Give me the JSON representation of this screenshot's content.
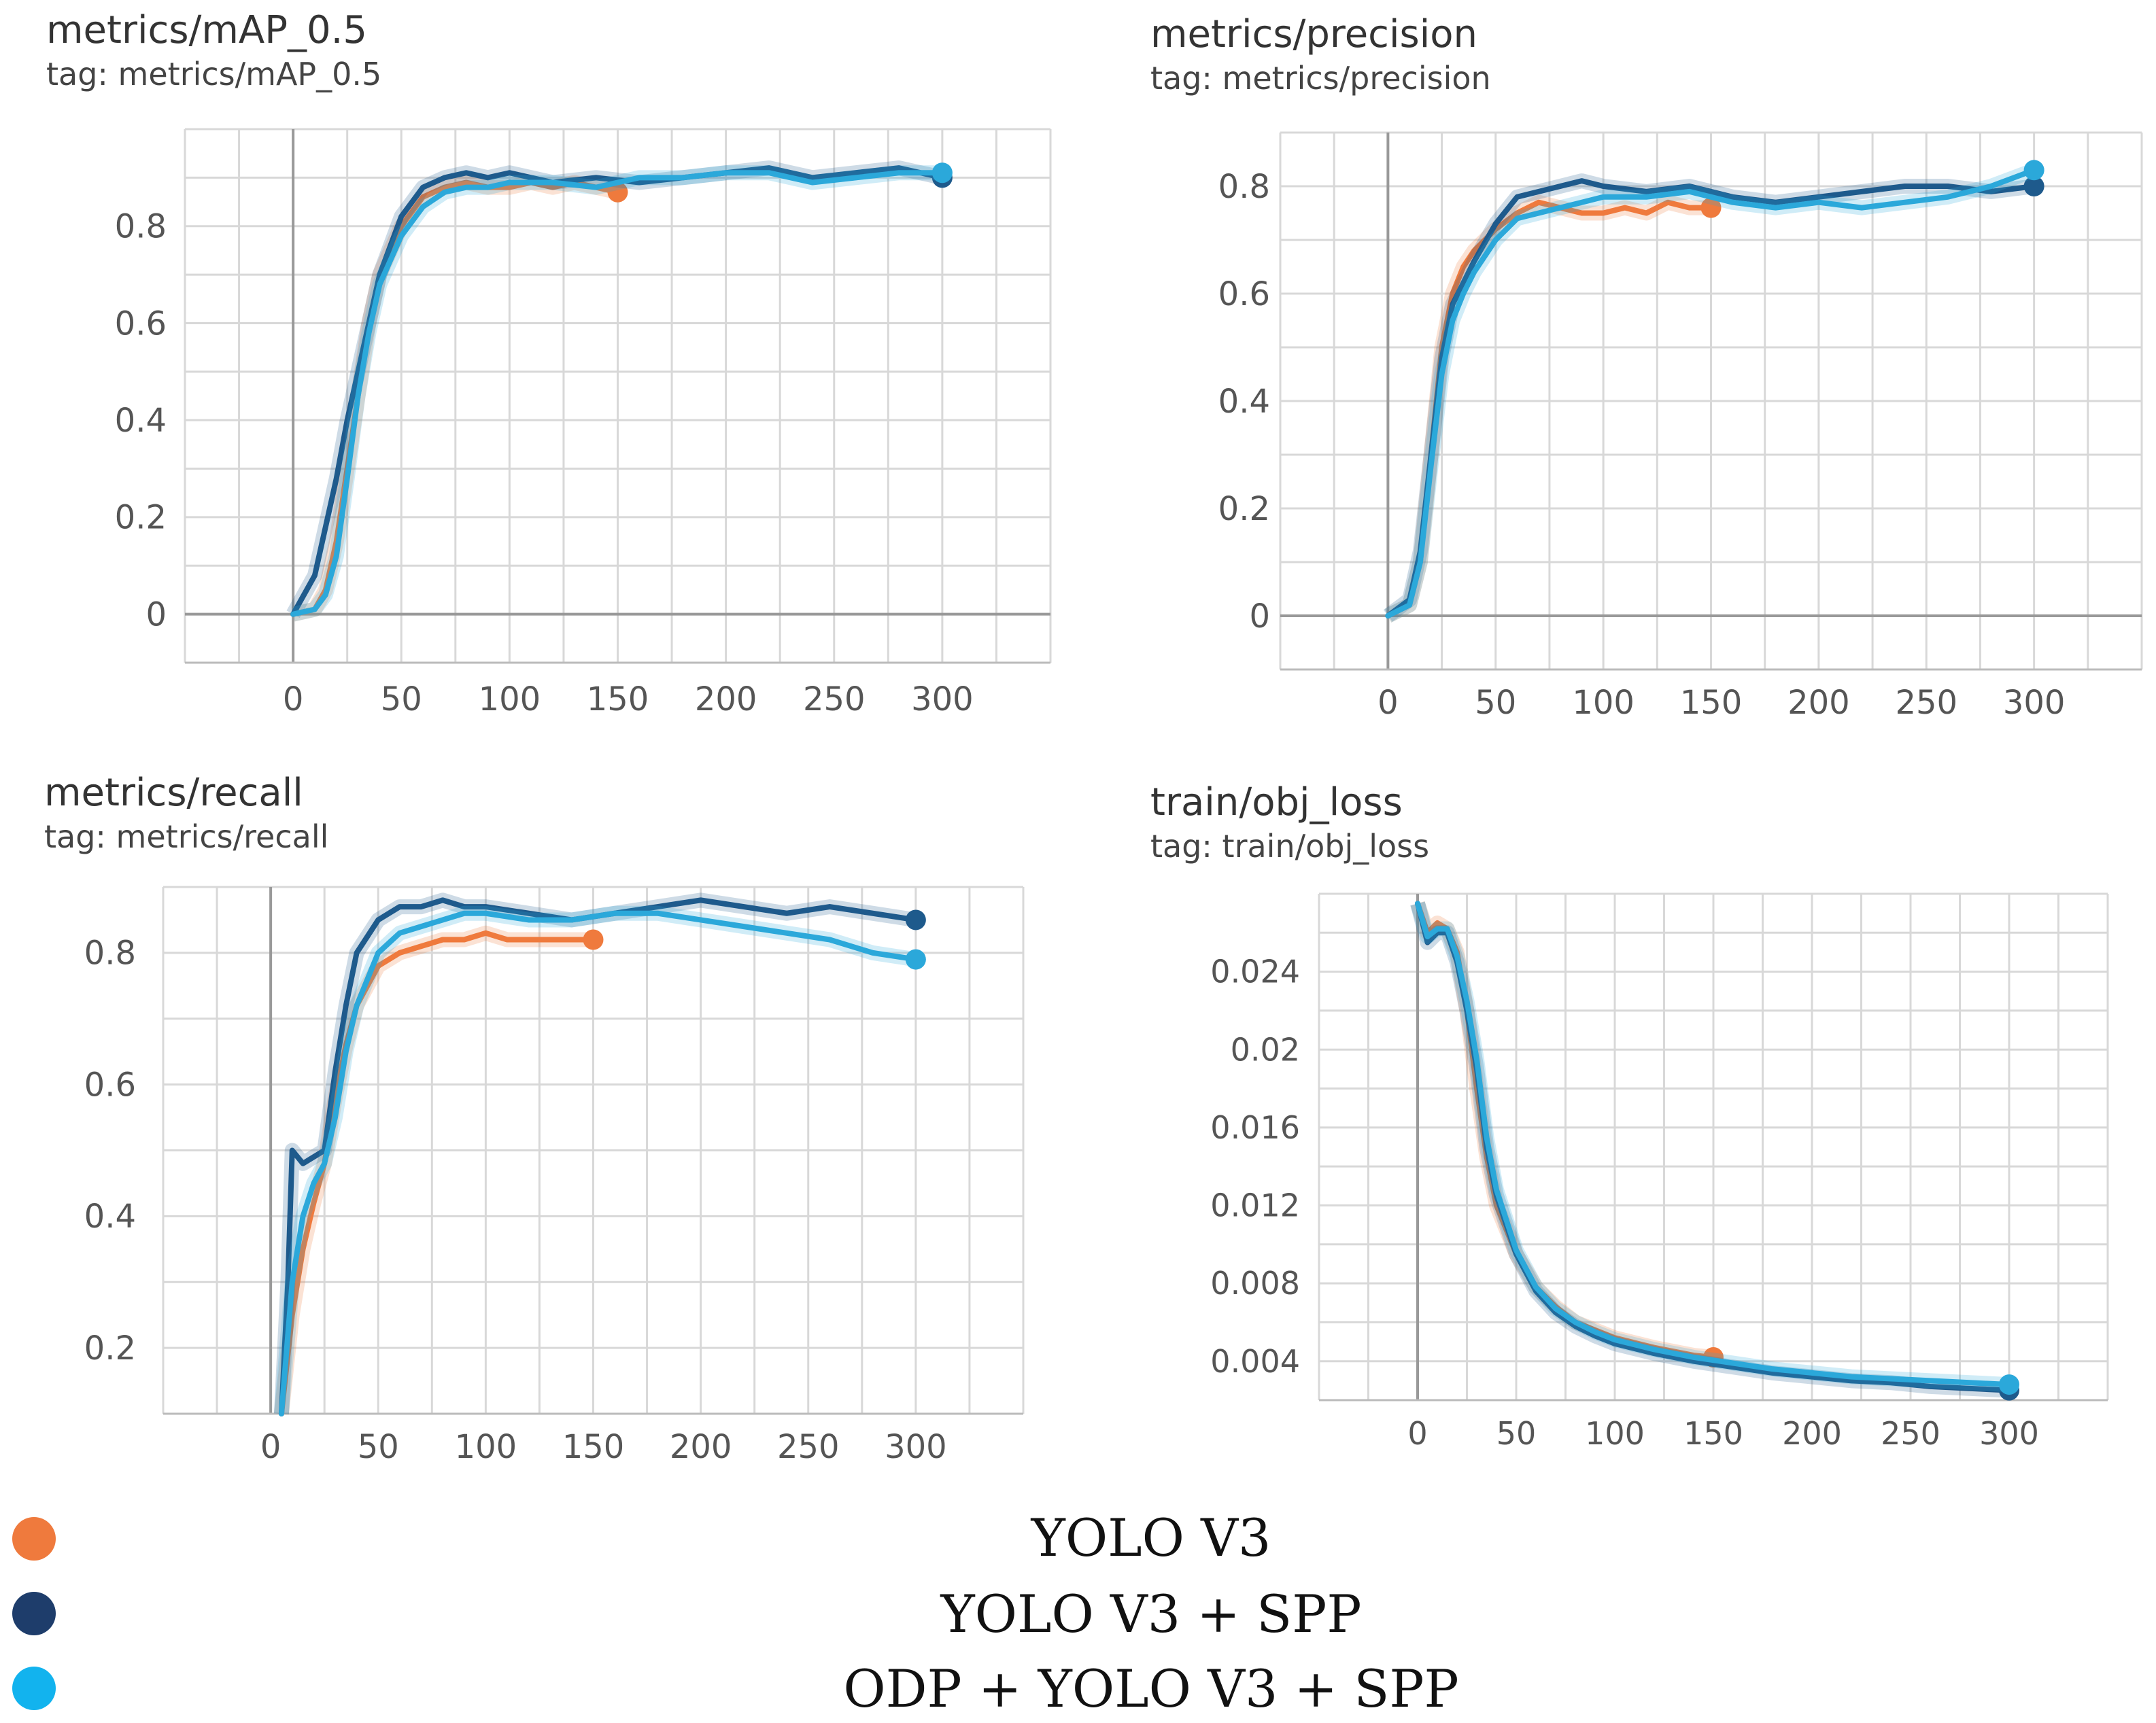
{
  "colors": {
    "yolo": "#EF7A3D",
    "yolo_spp": "#1E5A8C",
    "odp": "#2BA8DA",
    "grid": "#D8D8D8",
    "axis": "#999999"
  },
  "legend": [
    {
      "label": "YOLO V3",
      "color": "#EF7A3D"
    },
    {
      "label": "YOLO V3 + SPP",
      "color": "#1E3D6B"
    },
    {
      "label": "ODP + YOLO V3 + SPP",
      "color": "#12B3EE"
    }
  ],
  "chart_data": [
    {
      "id": "map",
      "type": "line",
      "title": "metrics/mAP_0.5",
      "subtitle": "tag: metrics/mAP_0.5",
      "x_ticks": [
        0,
        50,
        100,
        150,
        200,
        250,
        300
      ],
      "y_ticks": [
        0,
        0.2,
        0.4,
        0.6,
        0.8
      ],
      "y_tick_labels": [
        "0",
        "0.2",
        "0.4",
        "0.6",
        "0.8"
      ],
      "xlim": [
        -50,
        350
      ],
      "ylim": [
        -0.1,
        1.0
      ],
      "grid": true,
      "series": [
        {
          "key": "yolo",
          "x": [
            0,
            10,
            15,
            20,
            25,
            30,
            35,
            40,
            50,
            60,
            70,
            80,
            90,
            100,
            110,
            120,
            130,
            140,
            150
          ],
          "y": [
            0,
            0.01,
            0.05,
            0.15,
            0.3,
            0.45,
            0.6,
            0.7,
            0.8,
            0.86,
            0.88,
            0.89,
            0.88,
            0.88,
            0.89,
            0.88,
            0.89,
            0.88,
            0.87
          ]
        },
        {
          "key": "yolo_spp",
          "x": [
            0,
            10,
            15,
            20,
            25,
            30,
            35,
            40,
            50,
            60,
            70,
            80,
            90,
            100,
            120,
            140,
            160,
            180,
            200,
            220,
            240,
            260,
            280,
            300
          ],
          "y": [
            0,
            0.08,
            0.18,
            0.28,
            0.4,
            0.5,
            0.6,
            0.7,
            0.82,
            0.88,
            0.9,
            0.91,
            0.9,
            0.91,
            0.89,
            0.9,
            0.89,
            0.9,
            0.91,
            0.92,
            0.9,
            0.91,
            0.92,
            0.9
          ]
        },
        {
          "key": "odp",
          "x": [
            0,
            10,
            15,
            20,
            25,
            30,
            35,
            40,
            50,
            60,
            70,
            80,
            90,
            100,
            120,
            140,
            160,
            180,
            200,
            220,
            240,
            260,
            280,
            300
          ],
          "y": [
            0,
            0.01,
            0.04,
            0.12,
            0.28,
            0.45,
            0.58,
            0.68,
            0.78,
            0.84,
            0.87,
            0.88,
            0.88,
            0.89,
            0.89,
            0.88,
            0.9,
            0.9,
            0.91,
            0.91,
            0.89,
            0.9,
            0.91,
            0.91
          ]
        }
      ]
    },
    {
      "id": "precision",
      "type": "line",
      "title": "metrics/precision",
      "subtitle": "tag: metrics/precision",
      "x_ticks": [
        0,
        50,
        100,
        150,
        200,
        250,
        300
      ],
      "y_ticks": [
        0,
        0.2,
        0.4,
        0.6,
        0.8
      ],
      "y_tick_labels": [
        "0",
        "0.2",
        "0.4",
        "0.6",
        "0.8"
      ],
      "xlim": [
        -50,
        350
      ],
      "ylim": [
        -0.1,
        0.9
      ],
      "grid": true,
      "series": [
        {
          "key": "yolo",
          "x": [
            0,
            10,
            15,
            20,
            25,
            30,
            35,
            40,
            50,
            60,
            70,
            80,
            90,
            100,
            110,
            120,
            130,
            140,
            150
          ],
          "y": [
            0,
            0.02,
            0.1,
            0.3,
            0.5,
            0.6,
            0.65,
            0.68,
            0.72,
            0.75,
            0.77,
            0.76,
            0.75,
            0.75,
            0.76,
            0.75,
            0.77,
            0.76,
            0.76
          ]
        },
        {
          "key": "yolo_spp",
          "x": [
            0,
            10,
            15,
            20,
            25,
            30,
            35,
            40,
            50,
            60,
            70,
            80,
            90,
            100,
            120,
            140,
            160,
            180,
            200,
            220,
            240,
            260,
            280,
            300
          ],
          "y": [
            0,
            0.03,
            0.12,
            0.3,
            0.48,
            0.58,
            0.62,
            0.66,
            0.73,
            0.78,
            0.79,
            0.8,
            0.81,
            0.8,
            0.79,
            0.8,
            0.78,
            0.77,
            0.78,
            0.79,
            0.8,
            0.8,
            0.79,
            0.8
          ]
        },
        {
          "key": "odp",
          "x": [
            0,
            10,
            15,
            20,
            25,
            30,
            35,
            40,
            50,
            60,
            70,
            80,
            90,
            100,
            120,
            140,
            160,
            180,
            200,
            220,
            240,
            260,
            280,
            300
          ],
          "y": [
            0,
            0.02,
            0.1,
            0.28,
            0.45,
            0.55,
            0.6,
            0.64,
            0.7,
            0.74,
            0.75,
            0.76,
            0.77,
            0.78,
            0.78,
            0.79,
            0.77,
            0.76,
            0.77,
            0.76,
            0.77,
            0.78,
            0.8,
            0.83
          ]
        }
      ]
    },
    {
      "id": "recall",
      "type": "line",
      "title": "metrics/recall",
      "subtitle": "tag: metrics/recall",
      "x_ticks": [
        0,
        50,
        100,
        150,
        200,
        250,
        300
      ],
      "y_ticks": [
        0.2,
        0.4,
        0.6,
        0.8
      ],
      "y_tick_labels": [
        "0.2",
        "0.4",
        "0.6",
        "0.8"
      ],
      "xlim": [
        -50,
        350
      ],
      "ylim": [
        0.1,
        0.9
      ],
      "grid": true,
      "series": [
        {
          "key": "yolo",
          "x": [
            5,
            10,
            15,
            20,
            25,
            30,
            35,
            40,
            50,
            60,
            70,
            80,
            90,
            100,
            110,
            120,
            130,
            140,
            150
          ],
          "y": [
            0.1,
            0.25,
            0.35,
            0.42,
            0.48,
            0.58,
            0.66,
            0.72,
            0.78,
            0.8,
            0.81,
            0.82,
            0.82,
            0.83,
            0.82,
            0.82,
            0.82,
            0.82,
            0.82
          ]
        },
        {
          "key": "yolo_spp",
          "x": [
            5,
            8,
            10,
            15,
            20,
            25,
            30,
            35,
            40,
            50,
            60,
            70,
            80,
            90,
            100,
            120,
            140,
            160,
            180,
            200,
            220,
            240,
            260,
            280,
            300
          ],
          "y": [
            0.1,
            0.3,
            0.5,
            0.48,
            0.49,
            0.5,
            0.62,
            0.72,
            0.8,
            0.85,
            0.87,
            0.87,
            0.88,
            0.87,
            0.87,
            0.86,
            0.85,
            0.86,
            0.87,
            0.88,
            0.87,
            0.86,
            0.87,
            0.86,
            0.85
          ]
        },
        {
          "key": "odp",
          "x": [
            5,
            10,
            15,
            20,
            25,
            30,
            35,
            40,
            50,
            60,
            70,
            80,
            90,
            100,
            120,
            140,
            160,
            180,
            200,
            220,
            240,
            260,
            280,
            300
          ],
          "y": [
            0.1,
            0.3,
            0.4,
            0.45,
            0.48,
            0.55,
            0.65,
            0.72,
            0.8,
            0.83,
            0.84,
            0.85,
            0.86,
            0.86,
            0.85,
            0.85,
            0.86,
            0.86,
            0.85,
            0.84,
            0.83,
            0.82,
            0.8,
            0.79
          ]
        }
      ]
    },
    {
      "id": "objloss",
      "type": "line",
      "title": "train/obj_loss",
      "subtitle": "tag: train/obj_loss",
      "x_ticks": [
        0,
        50,
        100,
        150,
        200,
        250,
        300
      ],
      "y_ticks": [
        0.004,
        0.008,
        0.012,
        0.016,
        0.02,
        0.024
      ],
      "y_tick_labels": [
        "0.004",
        "0.008",
        "0.012",
        "0.016",
        "0.02",
        "0.024"
      ],
      "xlim": [
        -50,
        350
      ],
      "ylim": [
        0.002,
        0.028
      ],
      "grid": true,
      "series": [
        {
          "key": "yolo",
          "x": [
            0,
            5,
            10,
            15,
            20,
            25,
            30,
            35,
            40,
            50,
            60,
            70,
            80,
            90,
            100,
            120,
            140,
            150
          ],
          "y": [
            0.0275,
            0.026,
            0.0265,
            0.0262,
            0.025,
            0.022,
            0.018,
            0.0145,
            0.012,
            0.0095,
            0.0078,
            0.0068,
            0.006,
            0.0056,
            0.0052,
            0.0047,
            0.0043,
            0.0042
          ]
        },
        {
          "key": "yolo_spp",
          "x": [
            0,
            5,
            10,
            15,
            20,
            25,
            30,
            35,
            40,
            50,
            60,
            70,
            80,
            90,
            100,
            120,
            140,
            160,
            180,
            200,
            220,
            240,
            260,
            280,
            300
          ],
          "y": [
            0.0275,
            0.0255,
            0.026,
            0.026,
            0.0245,
            0.022,
            0.019,
            0.015,
            0.0125,
            0.0095,
            0.0076,
            0.0065,
            0.0058,
            0.0053,
            0.0049,
            0.0044,
            0.004,
            0.0037,
            0.0034,
            0.0032,
            0.003,
            0.0029,
            0.0027,
            0.0026,
            0.0025
          ]
        },
        {
          "key": "odp",
          "x": [
            0,
            5,
            10,
            15,
            20,
            25,
            30,
            35,
            40,
            50,
            60,
            70,
            80,
            90,
            100,
            120,
            140,
            160,
            180,
            200,
            220,
            240,
            260,
            280,
            300
          ],
          "y": [
            0.0275,
            0.0258,
            0.0262,
            0.0262,
            0.0248,
            0.0225,
            0.0195,
            0.0155,
            0.0128,
            0.0097,
            0.0078,
            0.0067,
            0.006,
            0.0055,
            0.0051,
            0.0046,
            0.0042,
            0.0039,
            0.0036,
            0.0034,
            0.0032,
            0.0031,
            0.003,
            0.0029,
            0.0028
          ]
        }
      ]
    }
  ]
}
